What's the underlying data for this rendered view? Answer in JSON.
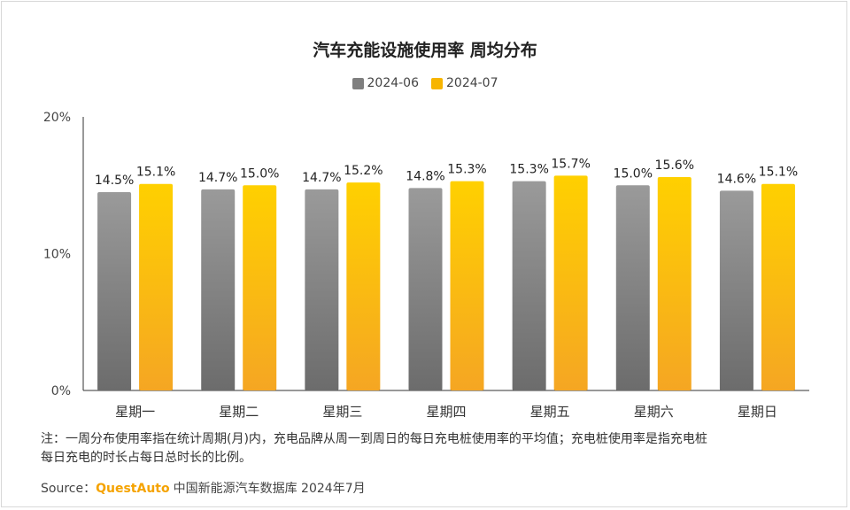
{
  "chart_data": {
    "type": "bar",
    "title": "汽车充能设施使用率 周均分布",
    "categories": [
      "星期一",
      "星期二",
      "星期三",
      "星期四",
      "星期五",
      "星期六",
      "星期日"
    ],
    "series": [
      {
        "name": "2024-06",
        "values": [
          14.5,
          14.7,
          14.7,
          14.8,
          15.3,
          15.0,
          14.6
        ],
        "color": "#8a8a8a"
      },
      {
        "name": "2024-07",
        "values": [
          15.1,
          15.0,
          15.2,
          15.3,
          15.7,
          15.6,
          15.1
        ],
        "color": "#f7b500"
      }
    ],
    "value_labels": {
      "2024-06": [
        "14.5%",
        "14.7%",
        "14.7%",
        "14.8%",
        "15.3%",
        "15.0%",
        "14.6%"
      ],
      "2024-07": [
        "15.1%",
        "15.0%",
        "15.2%",
        "15.3%",
        "15.7%",
        "15.6%",
        "15.1%"
      ]
    },
    "y_ticks": [
      "0%",
      "10%",
      "20%"
    ],
    "ylim": [
      0,
      20
    ],
    "legend_position": "top-center",
    "grid": false
  },
  "note": {
    "line1": "注：一周分布使用率指在统计周期(月)内，充电品牌从周一到周日的每日充电桩使用率的平均值；充电桩使用率是指充电桩",
    "line2": "每日充电的时长占每日总时长的比例。"
  },
  "source": {
    "label": "Source：",
    "brand": "QuestAuto",
    "text": "中国新能源汽车数据库 2024年7月"
  },
  "colors": {
    "gray_top": "#9a9a9a",
    "gray_bottom": "#6c6c6c",
    "gold_top": "#ffd000",
    "gold_bottom": "#f5a623"
  }
}
